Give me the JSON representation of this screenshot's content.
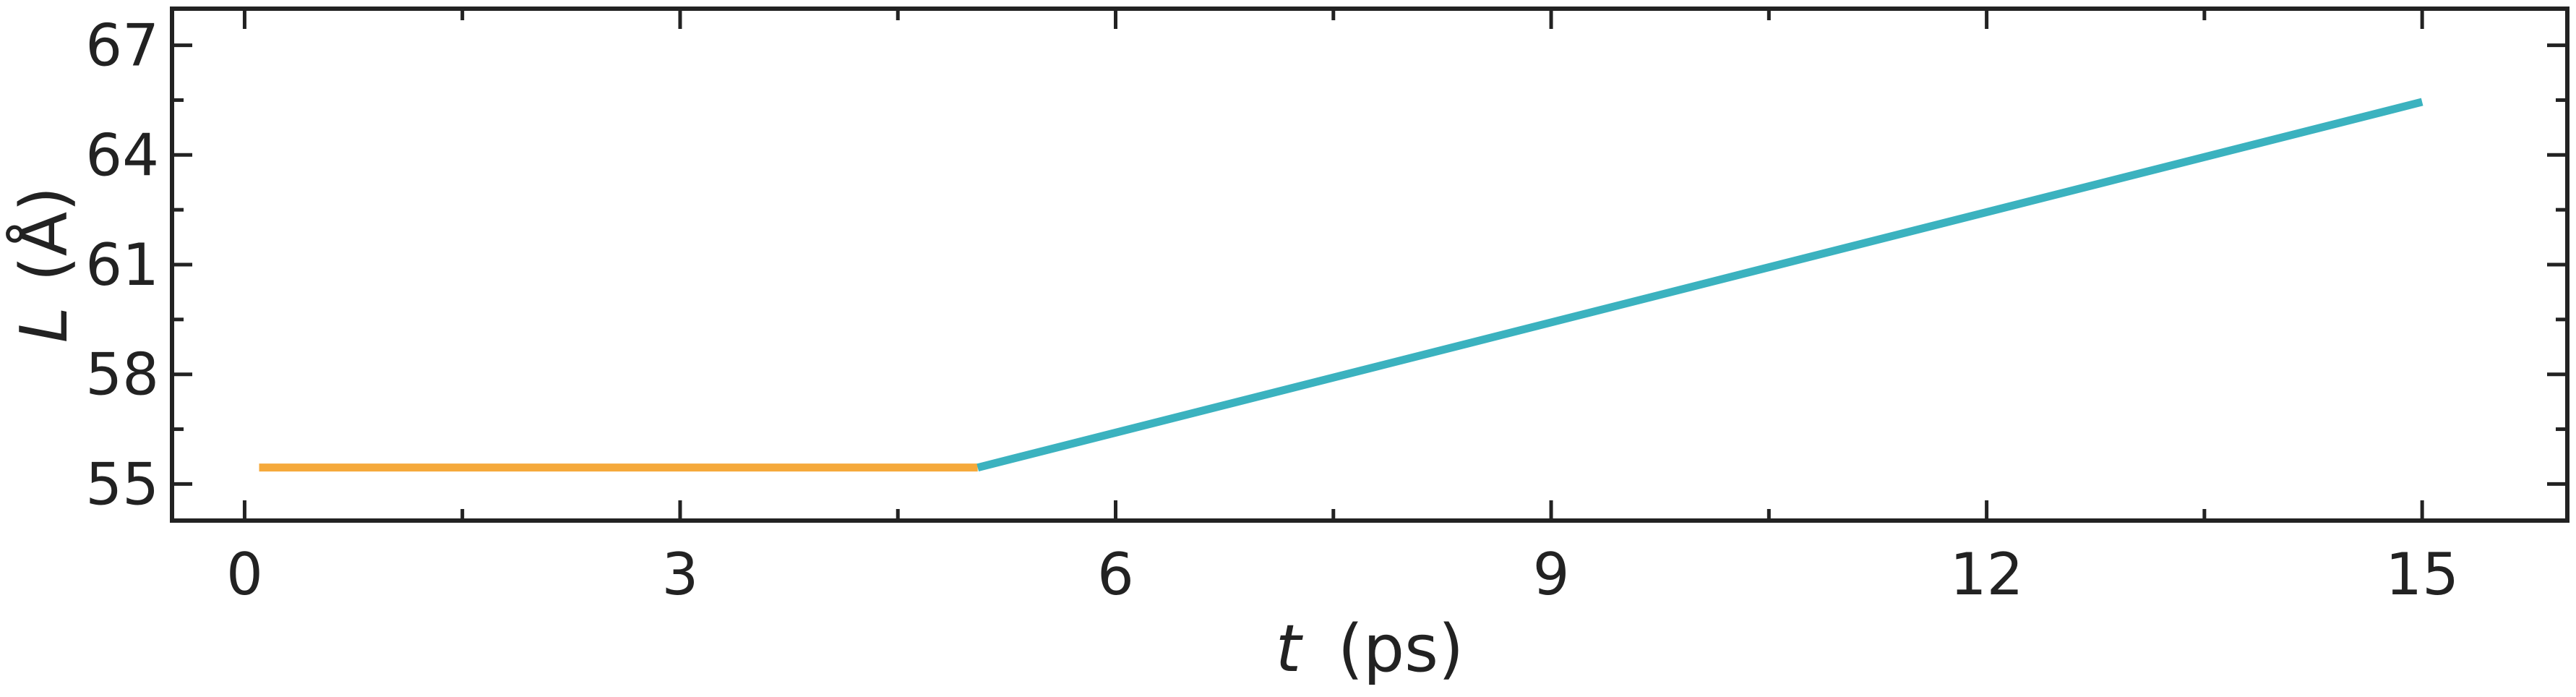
{
  "chart_data": {
    "type": "line",
    "title": "",
    "xlabel": {
      "symbol": "t",
      "unit": "(ps)"
    },
    "ylabel": {
      "symbol": "L",
      "unit": "(Å)"
    },
    "xlim": [
      -0.5,
      16
    ],
    "ylim": [
      54,
      68
    ],
    "xticks": [
      0,
      3,
      6,
      9,
      12,
      15
    ],
    "xticks_minor": [
      1.5,
      4.5,
      7.5,
      10.5,
      13.5
    ],
    "yticks": [
      55,
      58,
      61,
      64,
      67
    ],
    "yticks_minor": [
      56.5,
      59.5,
      62.5,
      65.5
    ],
    "grid": false,
    "legend": "none",
    "series": [
      {
        "color": "#F5A93B",
        "x": [
          0.1,
          5.05
        ],
        "y": [
          55.45,
          55.45
        ]
      },
      {
        "color": "#3BB2BF",
        "x": [
          5.05,
          15.0
        ],
        "y": [
          55.45,
          65.45
        ]
      }
    ]
  }
}
